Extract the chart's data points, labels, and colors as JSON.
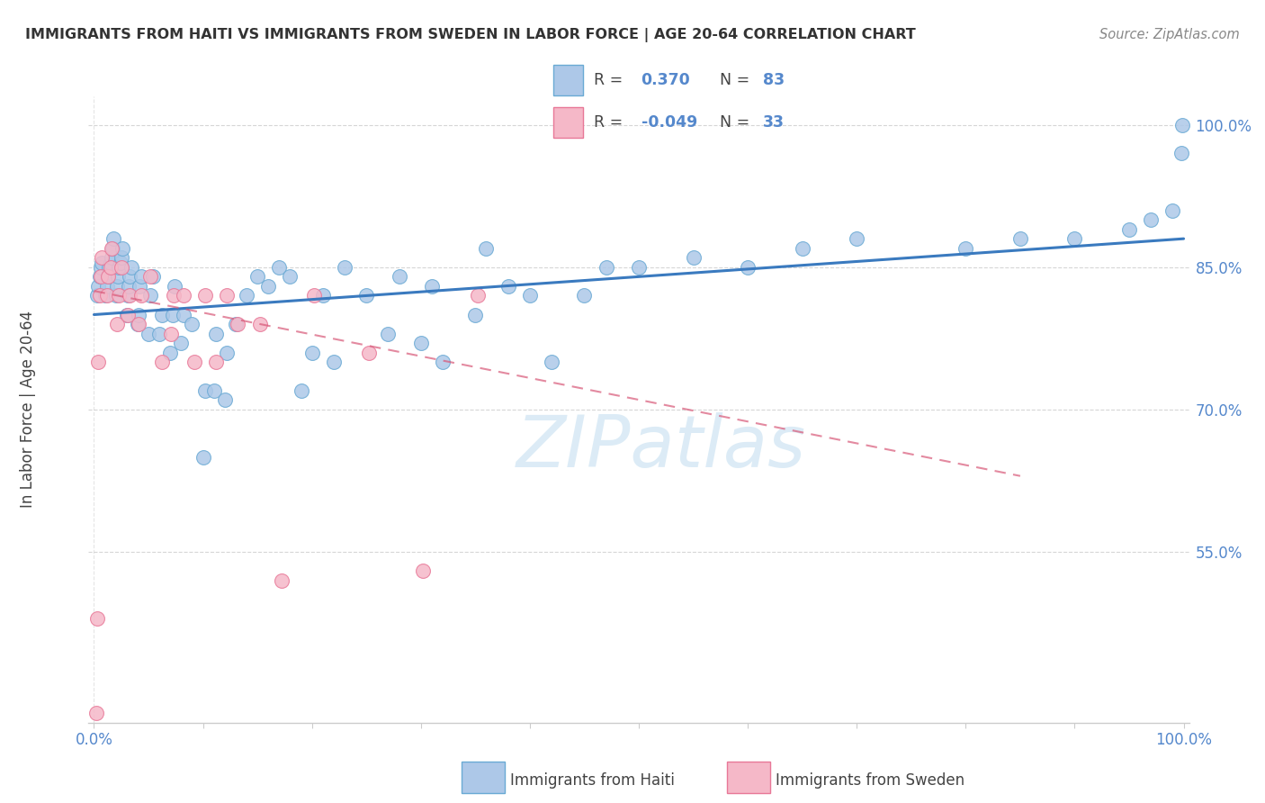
{
  "title": "IMMIGRANTS FROM HAITI VS IMMIGRANTS FROM SWEDEN IN LABOR FORCE | AGE 20-64 CORRELATION CHART",
  "source": "Source: ZipAtlas.com",
  "ylabel_label": "In Labor Force | Age 20-64",
  "ytick_labels": [
    "100.0%",
    "85.0%",
    "70.0%",
    "55.0%"
  ],
  "ytick_values": [
    1.0,
    0.85,
    0.7,
    0.55
  ],
  "legend_haiti_r": "0.370",
  "legend_haiti_n": "83",
  "legend_sweden_r": "-0.049",
  "legend_sweden_n": "33",
  "legend_labels": [
    "Immigrants from Haiti",
    "Immigrants from Sweden"
  ],
  "color_haiti": "#adc8e8",
  "color_haiti_edge": "#6aaad4",
  "color_haiti_line": "#3a7abf",
  "color_sweden": "#f5b8c8",
  "color_sweden_edge": "#e87898",
  "color_sweden_line": "#d85878",
  "watermark_color": "#c5dff0",
  "xlim": [
    -0.005,
    1.005
  ],
  "ylim": [
    0.37,
    1.03
  ],
  "haiti_x": [
    0.003,
    0.004,
    0.005,
    0.006,
    0.007,
    0.01,
    0.012,
    0.013,
    0.014,
    0.015,
    0.016,
    0.017,
    0.018,
    0.02,
    0.021,
    0.022,
    0.023,
    0.024,
    0.025,
    0.026,
    0.03,
    0.031,
    0.032,
    0.033,
    0.034,
    0.04,
    0.041,
    0.042,
    0.043,
    0.05,
    0.052,
    0.054,
    0.06,
    0.062,
    0.07,
    0.072,
    0.074,
    0.08,
    0.082,
    0.09,
    0.1,
    0.102,
    0.11,
    0.112,
    0.12,
    0.122,
    0.13,
    0.14,
    0.15,
    0.16,
    0.17,
    0.18,
    0.19,
    0.2,
    0.21,
    0.22,
    0.23,
    0.25,
    0.27,
    0.28,
    0.3,
    0.31,
    0.32,
    0.35,
    0.36,
    0.38,
    0.4,
    0.42,
    0.45,
    0.47,
    0.5,
    0.55,
    0.6,
    0.65,
    0.7,
    0.8,
    0.85,
    0.9,
    0.95,
    0.97,
    0.99,
    0.998,
    0.999
  ],
  "haiti_y": [
    0.82,
    0.83,
    0.84,
    0.85,
    0.855,
    0.82,
    0.83,
    0.84,
    0.85,
    0.855,
    0.86,
    0.87,
    0.88,
    0.82,
    0.83,
    0.84,
    0.85,
    0.855,
    0.86,
    0.87,
    0.8,
    0.82,
    0.83,
    0.84,
    0.85,
    0.79,
    0.8,
    0.83,
    0.84,
    0.78,
    0.82,
    0.84,
    0.78,
    0.8,
    0.76,
    0.8,
    0.83,
    0.77,
    0.8,
    0.79,
    0.65,
    0.72,
    0.72,
    0.78,
    0.71,
    0.76,
    0.79,
    0.82,
    0.84,
    0.83,
    0.85,
    0.84,
    0.72,
    0.76,
    0.82,
    0.75,
    0.85,
    0.82,
    0.78,
    0.84,
    0.77,
    0.83,
    0.75,
    0.8,
    0.87,
    0.83,
    0.82,
    0.75,
    0.82,
    0.85,
    0.85,
    0.86,
    0.85,
    0.87,
    0.88,
    0.87,
    0.88,
    0.88,
    0.89,
    0.9,
    0.91,
    0.97,
    1.0
  ],
  "sweden_x": [
    0.002,
    0.003,
    0.004,
    0.005,
    0.006,
    0.007,
    0.012,
    0.013,
    0.015,
    0.016,
    0.021,
    0.023,
    0.025,
    0.031,
    0.033,
    0.041,
    0.043,
    0.052,
    0.062,
    0.071,
    0.073,
    0.082,
    0.092,
    0.102,
    0.112,
    0.122,
    0.132,
    0.152,
    0.172,
    0.202,
    0.252,
    0.302,
    0.352
  ],
  "sweden_y": [
    0.38,
    0.48,
    0.75,
    0.82,
    0.84,
    0.86,
    0.82,
    0.84,
    0.85,
    0.87,
    0.79,
    0.82,
    0.85,
    0.8,
    0.82,
    0.79,
    0.82,
    0.84,
    0.75,
    0.78,
    0.82,
    0.82,
    0.75,
    0.82,
    0.75,
    0.82,
    0.79,
    0.79,
    0.52,
    0.82,
    0.76,
    0.53,
    0.82
  ],
  "haiti_trendline_x": [
    0.0,
    1.0
  ],
  "haiti_trendline_y": [
    0.8,
    0.88
  ],
  "sweden_trendline_x": [
    0.0,
    0.85
  ],
  "sweden_trendline_y": [
    0.825,
    0.63
  ],
  "grid_color": "#cccccc",
  "axis_color": "#cccccc",
  "title_color": "#333333",
  "tick_color": "#5588cc",
  "legend_text_color": "#333333",
  "legend_r_color": "#5588cc",
  "background_color": "#ffffff"
}
